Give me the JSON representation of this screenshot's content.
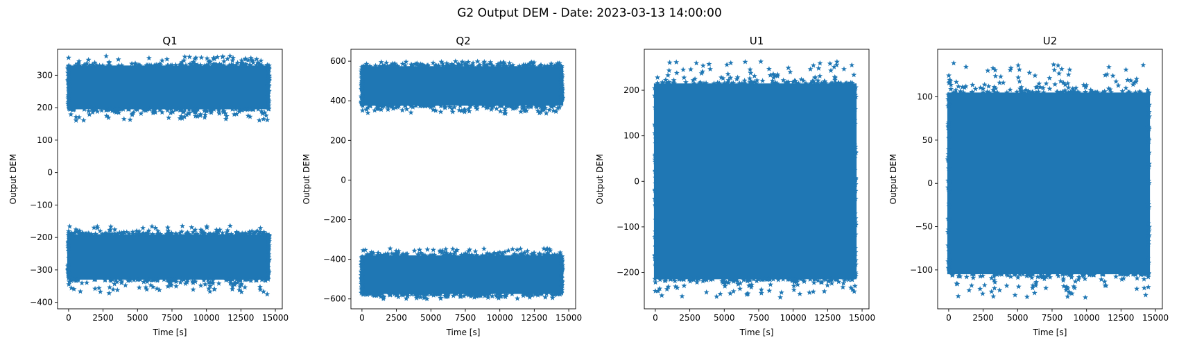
{
  "figure": {
    "suptitle": "G2 Output DEM - Date: 2023-03-13 14:00:00",
    "marker": "star",
    "series_color": "#1f77b4"
  },
  "chart_data": [
    {
      "type": "scatter",
      "title": "Q1",
      "xlabel": "Time [s]",
      "ylabel": "Output DEM",
      "xlim": [
        -800,
        15500
      ],
      "ylim": [
        -420,
        380
      ],
      "xticks": [
        0,
        2500,
        5000,
        7500,
        10000,
        12500,
        15000
      ],
      "yticks": [
        -400,
        -300,
        -200,
        -100,
        0,
        100,
        200,
        300
      ],
      "x_range": [
        0,
        14500
      ],
      "bands": [
        {
          "low": 195,
          "high": 330,
          "outer_low": 160,
          "outer_high": 362
        },
        {
          "low": -330,
          "high": -190,
          "outer_low": -375,
          "outer_high": -163
        }
      ]
    },
    {
      "type": "scatter",
      "title": "Q2",
      "xlabel": "Time [s]",
      "ylabel": "Output DEM",
      "xlim": [
        -800,
        15500
      ],
      "ylim": [
        -650,
        660
      ],
      "xticks": [
        0,
        2500,
        5000,
        7500,
        10000,
        12500,
        15000
      ],
      "yticks": [
        -600,
        -400,
        -200,
        0,
        200,
        400,
        600
      ],
      "x_range": [
        0,
        14500
      ],
      "bands": [
        {
          "low": 375,
          "high": 575,
          "outer_low": 335,
          "outer_high": 600
        },
        {
          "low": -575,
          "high": -380,
          "outer_low": -600,
          "outer_high": -345
        }
      ]
    },
    {
      "type": "scatter",
      "title": "U1",
      "xlabel": "Time [s]",
      "ylabel": "Output DEM",
      "xlim": [
        -800,
        15500
      ],
      "ylim": [
        -280,
        290
      ],
      "xticks": [
        0,
        2500,
        5000,
        7500,
        10000,
        12500,
        15000
      ],
      "yticks": [
        -200,
        -100,
        0,
        100,
        200
      ],
      "x_range": [
        0,
        14500
      ],
      "bands": [
        {
          "low": -215,
          "high": 215,
          "outer_low": -255,
          "outer_high": 265
        }
      ]
    },
    {
      "type": "scatter",
      "title": "U2",
      "xlabel": "Time [s]",
      "ylabel": "Output DEM",
      "xlim": [
        -800,
        15500
      ],
      "ylim": [
        -145,
        155
      ],
      "xticks": [
        0,
        2500,
        5000,
        7500,
        10000,
        12500,
        15000
      ],
      "yticks": [
        -100,
        -50,
        0,
        50,
        100
      ],
      "x_range": [
        0,
        14500
      ],
      "bands": [
        {
          "low": -105,
          "high": 105,
          "outer_low": -132,
          "outer_high": 140
        }
      ]
    }
  ]
}
